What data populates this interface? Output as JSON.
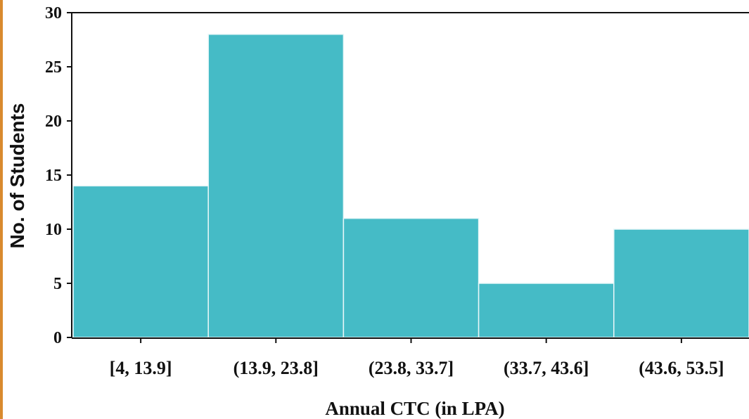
{
  "chart_data": {
    "type": "bar",
    "title": "",
    "xlabel": "Annual CTC (in LPA)",
    "ylabel": "No. of Students",
    "categories": [
      "[4, 13.9]",
      "(13.9, 23.8]",
      "(23.8, 33.7]",
      "(33.7, 43.6]",
      "(43.6, 53.5]"
    ],
    "values": [
      14,
      28,
      11,
      5,
      10
    ],
    "ylim": [
      0,
      30
    ],
    "yticks": [
      "0",
      "5",
      "10",
      "15",
      "20",
      "25",
      "30"
    ],
    "bar_color": "#45bbc6",
    "grid": false,
    "legend": "none"
  }
}
